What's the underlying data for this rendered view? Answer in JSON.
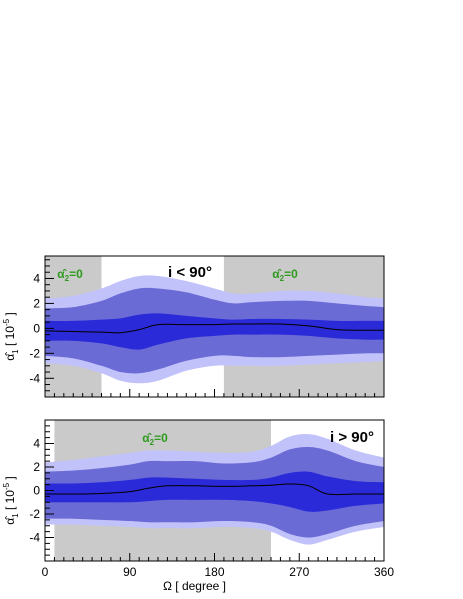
{
  "chart_data": [
    {
      "type": "area",
      "panel": "top",
      "annotation": "i < 90°",
      "shade_label": "α̂2=0",
      "ylabel": "α̂1 [ 10^-5 ]",
      "xlim": [
        0,
        360
      ],
      "ylim": [
        -5.5,
        5.8
      ],
      "yticks": [
        -4,
        -2,
        0,
        2,
        4
      ],
      "shaded_regions": [
        [
          0,
          60
        ],
        [
          190,
          360
        ]
      ],
      "x": [
        0,
        30,
        60,
        80,
        100,
        120,
        150,
        180,
        200,
        220,
        250,
        280,
        310,
        340,
        360
      ],
      "central": [
        -0.2,
        -0.25,
        -0.3,
        -0.35,
        -0.1,
        0.3,
        0.3,
        0.3,
        0.35,
        0.35,
        0.35,
        0.2,
        -0.1,
        -0.15,
        -0.15
      ],
      "inner_upper": [
        0.6,
        0.6,
        0.7,
        0.8,
        1.1,
        1.2,
        1.0,
        0.8,
        0.7,
        0.75,
        0.75,
        0.7,
        0.6,
        0.6,
        0.6
      ],
      "inner_lower": [
        -1.0,
        -1.0,
        -1.2,
        -1.5,
        -1.7,
        -1.3,
        -0.8,
        -0.6,
        -0.5,
        -0.5,
        -0.5,
        -0.6,
        -0.8,
        -0.9,
        -0.9
      ],
      "band1_upper": [
        1.6,
        1.7,
        2.2,
        2.8,
        3.2,
        3.2,
        2.9,
        2.3,
        2.0,
        2.1,
        2.2,
        2.2,
        2.0,
        1.8,
        1.7
      ],
      "band1_lower": [
        -2.2,
        -2.4,
        -3.0,
        -3.5,
        -3.6,
        -3.3,
        -2.6,
        -2.2,
        -2.2,
        -2.3,
        -2.3,
        -2.2,
        -2.1,
        -2.0,
        -2.0
      ],
      "band2_upper": [
        2.4,
        2.6,
        3.2,
        3.8,
        4.2,
        4.2,
        3.8,
        3.2,
        2.8,
        2.8,
        3.0,
        3.0,
        2.8,
        2.5,
        2.4
      ],
      "band2_lower": [
        -2.8,
        -3.0,
        -3.6,
        -4.2,
        -4.4,
        -4.2,
        -3.4,
        -3.0,
        -3.0,
        -3.0,
        -3.0,
        -2.9,
        -2.8,
        -2.7,
        -2.6
      ]
    },
    {
      "type": "area",
      "panel": "bottom",
      "annotation": "i > 90°",
      "shade_label": "α̂2=0",
      "ylabel": "α̂1 [ 10^-5 ]",
      "xlabel": "Ω [ degree ]",
      "xlim": [
        0,
        360
      ],
      "ylim": [
        -6,
        6
      ],
      "xticks": [
        0,
        90,
        180,
        270,
        360
      ],
      "yticks": [
        -4,
        -2,
        0,
        2,
        4
      ],
      "shaded_regions": [
        [
          10,
          240
        ]
      ],
      "x": [
        0,
        30,
        60,
        90,
        110,
        130,
        160,
        190,
        220,
        240,
        260,
        280,
        300,
        330,
        360
      ],
      "central": [
        -0.3,
        -0.3,
        -0.25,
        -0.1,
        0.2,
        0.4,
        0.4,
        0.35,
        0.4,
        0.45,
        0.55,
        0.4,
        -0.3,
        -0.3,
        -0.3
      ],
      "inner_upper": [
        0.6,
        0.6,
        0.7,
        0.9,
        1.1,
        1.1,
        1.0,
        0.9,
        0.9,
        1.1,
        1.5,
        1.6,
        1.2,
        0.8,
        0.7
      ],
      "inner_lower": [
        -1.0,
        -1.0,
        -1.0,
        -1.0,
        -0.9,
        -0.8,
        -0.8,
        -0.8,
        -0.9,
        -1.1,
        -1.4,
        -1.8,
        -1.7,
        -1.3,
        -1.1
      ],
      "band1_upper": [
        1.6,
        1.7,
        1.9,
        2.2,
        2.5,
        2.5,
        2.5,
        2.3,
        2.4,
        2.8,
        3.5,
        3.7,
        3.4,
        2.5,
        2.0
      ],
      "band1_lower": [
        -2.4,
        -2.4,
        -2.5,
        -2.6,
        -2.7,
        -2.7,
        -2.7,
        -2.6,
        -2.7,
        -3.0,
        -3.7,
        -4.0,
        -3.7,
        -3.0,
        -2.6
      ],
      "band2_upper": [
        2.4,
        2.6,
        2.9,
        3.2,
        3.4,
        3.4,
        3.3,
        3.2,
        3.3,
        3.8,
        4.6,
        4.8,
        4.4,
        3.4,
        2.8
      ],
      "band2_lower": [
        -2.9,
        -2.9,
        -3.0,
        -3.1,
        -3.2,
        -3.2,
        -3.2,
        -3.1,
        -3.2,
        -3.5,
        -4.2,
        -4.6,
        -4.2,
        -3.5,
        -3.1
      ]
    }
  ],
  "colors": {
    "shade": "#cacaca",
    "band2": "#c2c2fb",
    "band1": "#6b6bd6",
    "inner": "#2a2ad8",
    "line": "#000000",
    "green": "#2e9a1e"
  }
}
